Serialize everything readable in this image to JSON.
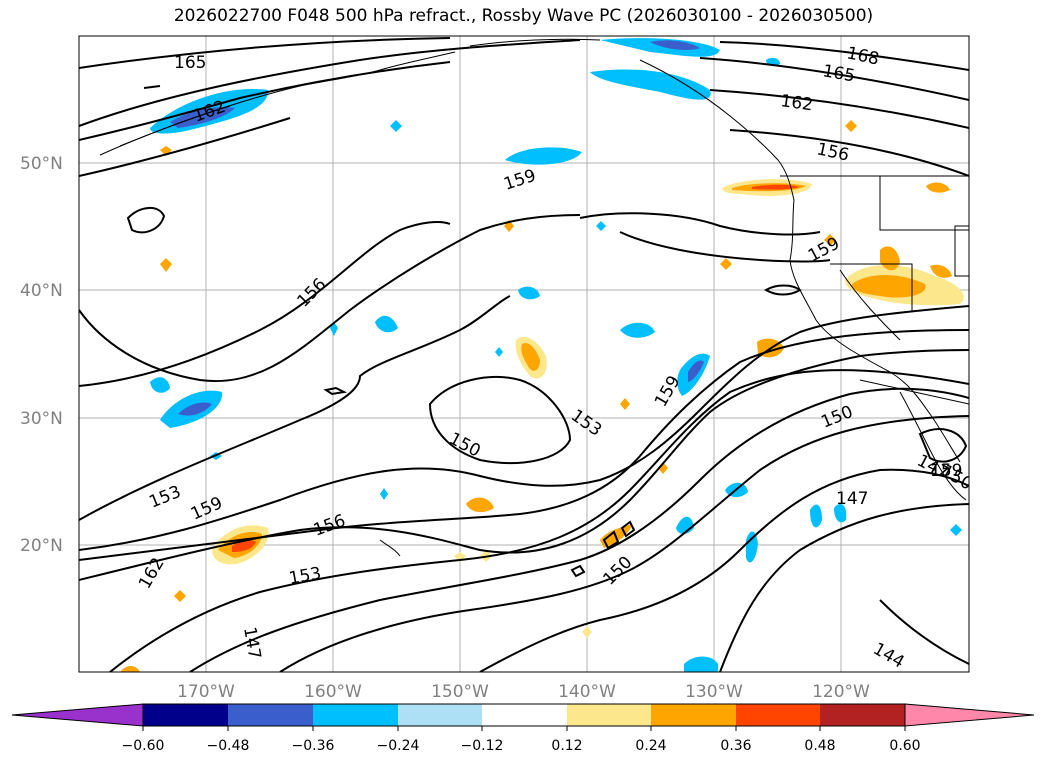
{
  "title": "2026022700 F048 500 hPa refract., Rossby Wave PC (2026030100 - 2026030500)",
  "lat_labels": [
    "50°N",
    "40°N",
    "30°N",
    "20°N"
  ],
  "lon_labels": [
    "170°W",
    "160°W",
    "150°W",
    "140°W",
    "130°W",
    "120°W"
  ],
  "contour_labels": [
    "168",
    "165",
    "165",
    "162",
    "162",
    "162",
    "159",
    "159",
    "159",
    "159",
    "159",
    "156",
    "156",
    "156",
    "153",
    "153",
    "153",
    "150",
    "150",
    "150",
    "150",
    "147",
    "147",
    "147",
    "144"
  ],
  "colorbar": {
    "ticks": [
      "−0.60",
      "−0.48",
      "−0.36",
      "−0.24",
      "−0.12",
      "0.12",
      "0.24",
      "0.36",
      "0.48",
      "0.60"
    ],
    "colors": [
      "#9932CC",
      "#00008B",
      "#3A5FCD",
      "#00BFFF",
      "#ADDFF5",
      "#FFFFFF",
      "#FCE78C",
      "#FFA500",
      "#FF4500",
      "#B22222",
      "#FF88AA"
    ]
  },
  "field_colors": {
    "neg_light": "#ADDFF5",
    "neg_mid": "#00BFFF",
    "neg_strong": "#3A5FCD",
    "neg_extreme": "#9932CC",
    "pos_light": "#FCE78C",
    "pos_mid": "#FFA500",
    "pos_strong": "#FF4500"
  }
}
